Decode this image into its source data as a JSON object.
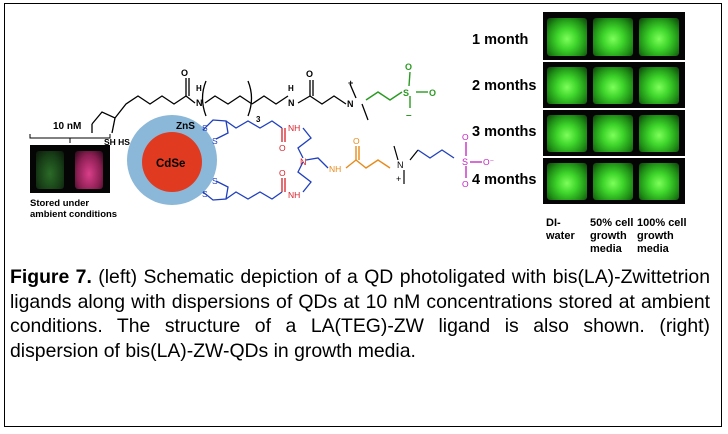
{
  "figure": {
    "label": "Figure 7.",
    "caption": "(left) Schematic depiction of a QD photoligated with bis(LA)-Zwittetrion ligands along with dispersions of QDs at 10 nM concentrations stored at ambient conditions.  The structure of a LA(TEG)-ZW ligand is also shown. (right) dispersion of bis(LA)-ZW-QDs in growth media."
  },
  "ligand_structure": {
    "atoms": {
      "sh_hs": "SH HS",
      "n_amide1": "N",
      "h_amide1": "H",
      "o_carbonyl1": "O",
      "teg_subscript": "3",
      "n_amide2": "N",
      "h_amide2": "H",
      "o_carbonyl2": "O",
      "n_quat": "N",
      "plus": "+",
      "s_sulfonate": "S",
      "o_top": "O",
      "o_right": "O",
      "minus": "–"
    }
  },
  "qd_schematic": {
    "shell_label": "ZnS",
    "core_label": "CdSe",
    "atoms": {
      "s1": "S",
      "s2": "S",
      "s3": "S",
      "s4": "S",
      "nh1": "NH",
      "o1": "O",
      "n_center": "N",
      "nh2": "NH",
      "o2": "O",
      "nh3": "NH",
      "o3": "O",
      "n_plus": "N",
      "plus": "+",
      "s_sulf": "S",
      "o_a": "O",
      "o_b": "O",
      "o_minus": "O⁻"
    },
    "colors": {
      "shell": "#8bb8d8",
      "core": "#e03a20",
      "linker_blue": "#1f3fbf",
      "amide_red": "#d7202a",
      "orange": "#e88a1a",
      "sulfonate": "#c020c0"
    }
  },
  "left_photo": {
    "concentration_label": "10 nM",
    "caption_line1": "Stored under",
    "caption_line2": "ambient conditions"
  },
  "right_photo": {
    "rows": [
      {
        "label": "1 month"
      },
      {
        "label": "2 months"
      },
      {
        "label": "3 months"
      },
      {
        "label": "4 months"
      }
    ],
    "columns": [
      {
        "label": "DI-\nwater"
      },
      {
        "label": "50% cell\ngrowth\nmedia"
      },
      {
        "label": "100% cell\ngrowth\nmedia"
      }
    ]
  }
}
